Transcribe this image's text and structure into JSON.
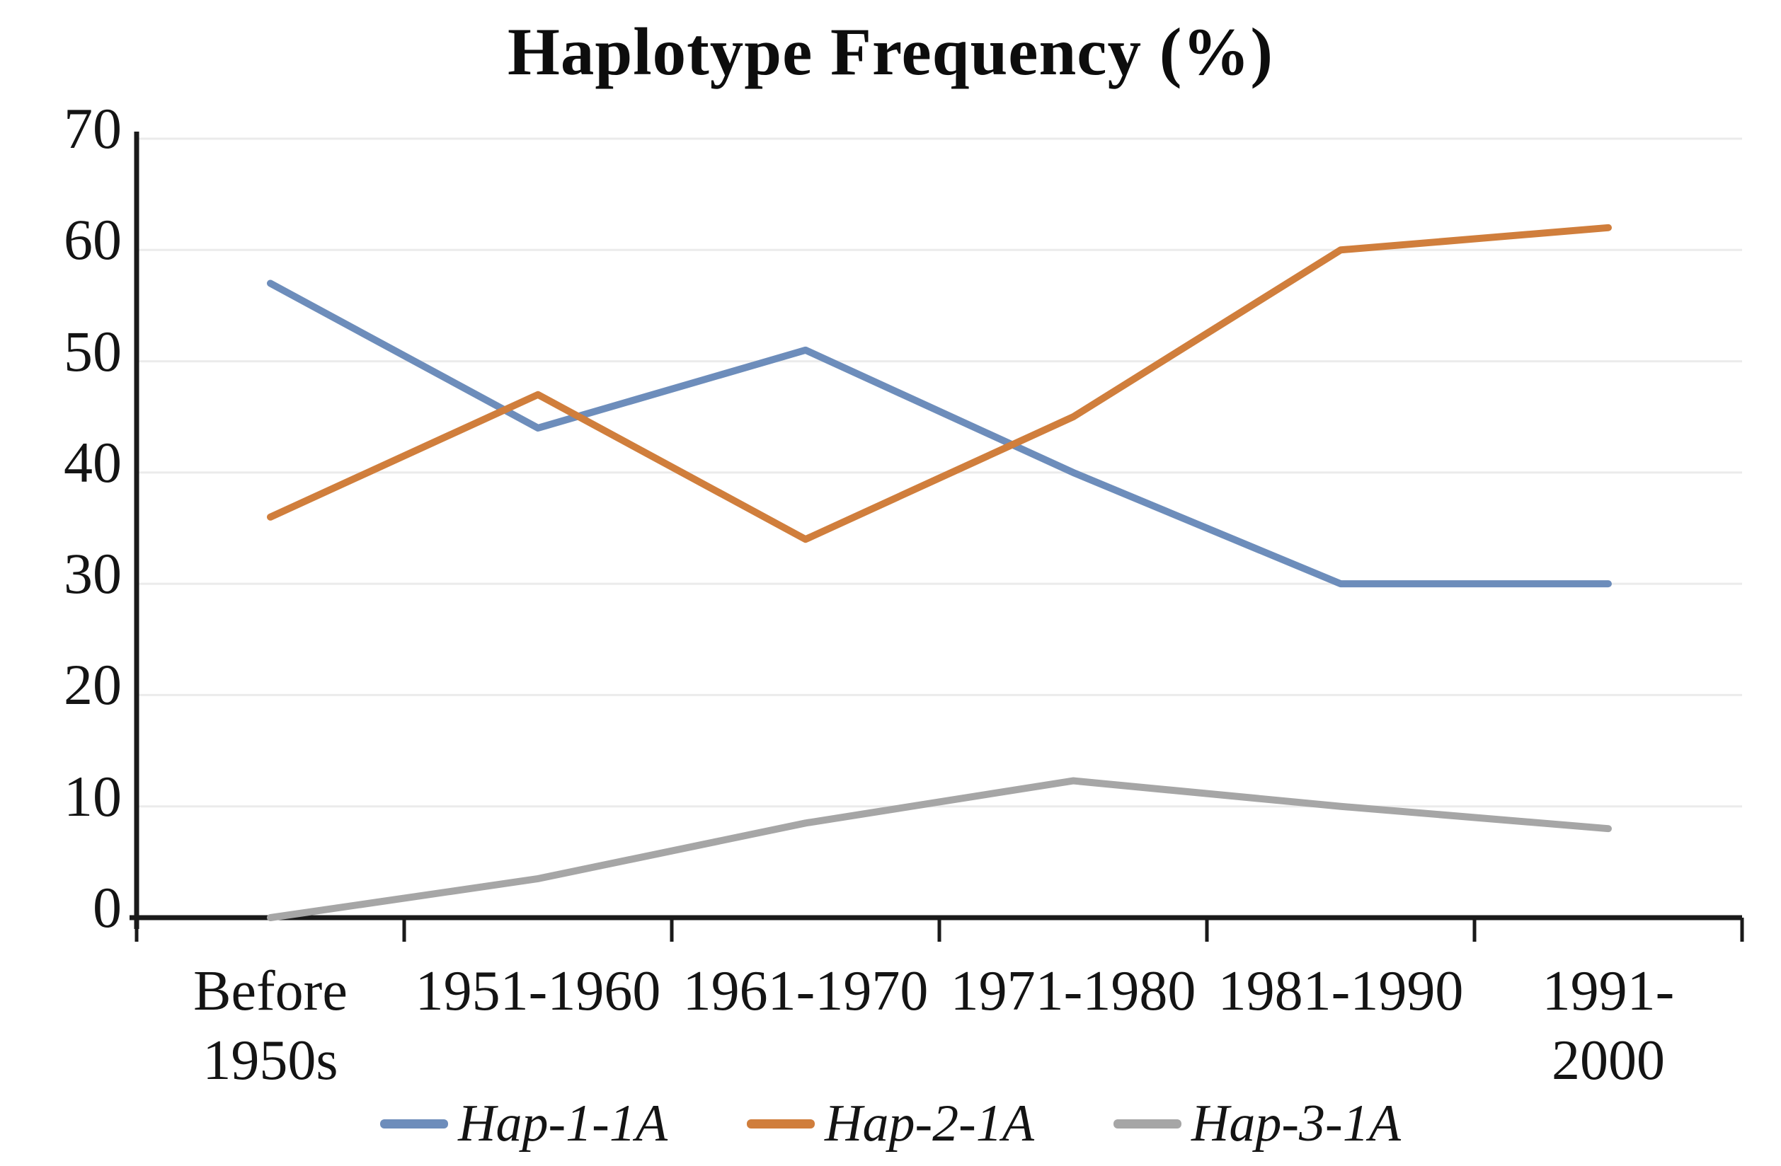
{
  "figure": {
    "background": "#ffffff"
  },
  "chart_data": {
    "type": "line",
    "title": "Haplotype Frequency (%)",
    "categories": [
      "Before 1950s",
      "1951-1960",
      "1961-1970",
      "1971-1980",
      "1981-1990",
      "1991-2000"
    ],
    "series": [
      {
        "name": "Hap-1-1A",
        "color": "#6d8dbb",
        "values": [
          57,
          44,
          51,
          40,
          30,
          30
        ]
      },
      {
        "name": "Hap-2-1A",
        "color": "#d07e3c",
        "values": [
          36,
          47,
          34,
          45,
          60,
          62
        ]
      },
      {
        "name": "Hap-3-1A",
        "color": "#a6a6a6",
        "values": [
          0,
          3.5,
          8.5,
          12.3,
          10,
          8
        ]
      }
    ],
    "xlabel": "",
    "ylabel": "",
    "ylim": [
      0,
      70
    ],
    "yticks": [
      0,
      10,
      20,
      30,
      40,
      50,
      60,
      70
    ],
    "grid": true,
    "legend_position": "bottom",
    "legend_labels": [
      "Hap-1-1A",
      "Hap-2-1A",
      "Hap-3-1A"
    ],
    "axis_color": "#1a1a1a",
    "gridline_color": "#ebebeb"
  }
}
